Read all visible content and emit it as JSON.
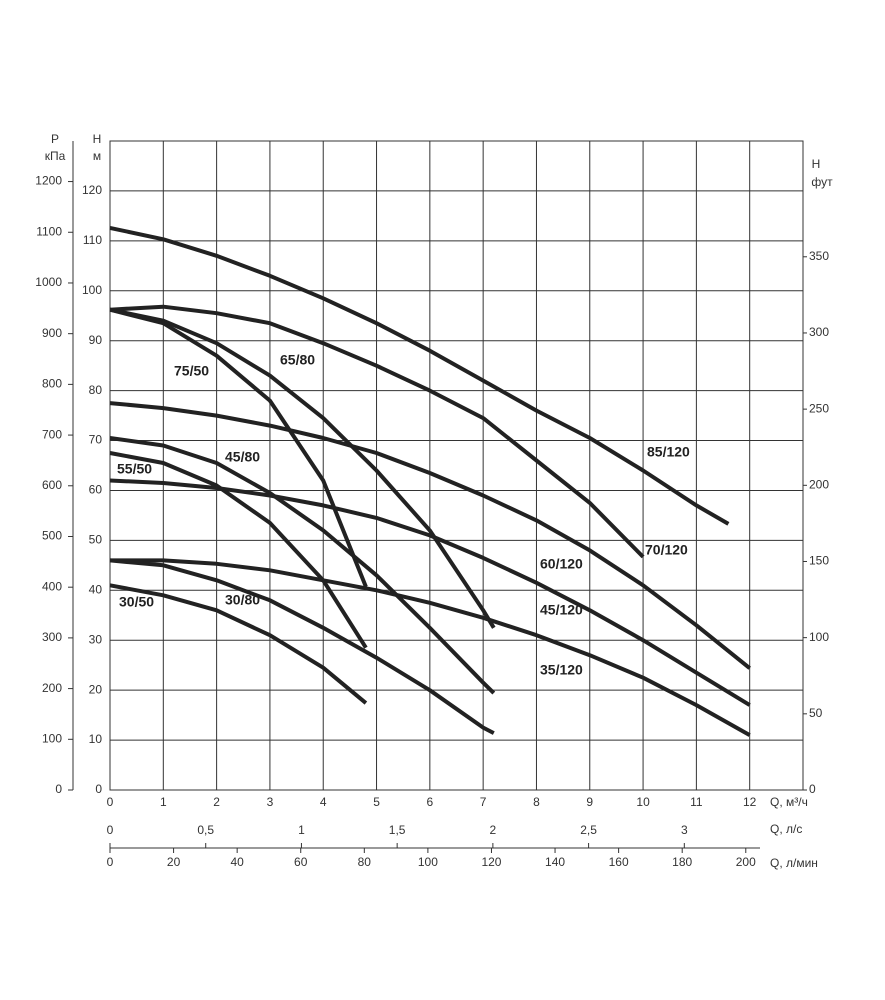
{
  "chart_data": {
    "type": "line",
    "y_label": [
      "H",
      "м"
    ],
    "y2_label": [
      "H",
      "фут"
    ],
    "y3_label": [
      "P",
      "кПа"
    ],
    "x_label": "Q, м³/ч",
    "x2_label": "Q, л/с",
    "x3_label": "Q, л/мин",
    "xlim": [
      0,
      13
    ],
    "xticks": [
      0,
      1,
      2,
      3,
      4,
      5,
      6,
      7,
      8,
      9,
      10,
      11,
      12
    ],
    "ylim": [
      0,
      130
    ],
    "yticks": [
      0,
      10,
      20,
      30,
      40,
      50,
      60,
      70,
      80,
      90,
      100,
      110,
      120
    ],
    "y2lim": [
      0,
      426
    ],
    "y2ticks": [
      0,
      50,
      100,
      150,
      200,
      250,
      300,
      350
    ],
    "y3lim": [
      0,
      1280
    ],
    "y3ticks": [
      0,
      100,
      200,
      300,
      400,
      500,
      600,
      700,
      800,
      900,
      1000,
      1100,
      1200
    ],
    "x2lim": [
      0,
      3.62
    ],
    "x2ticks": [
      0,
      {
        "value": 0.5,
        "label": "0,5"
      },
      1,
      {
        "value": 1.5,
        "label": "1,5"
      },
      2,
      {
        "value": 2.5,
        "label": "2,5"
      },
      3
    ],
    "x3lim": [
      0,
      218
    ],
    "x3ticks": [
      0,
      20,
      40,
      60,
      80,
      100,
      120,
      140,
      160,
      180,
      200
    ],
    "grid": true,
    "series": [
      {
        "name": "85/120",
        "color": "#222222",
        "x": [
          0,
          1,
          2,
          3,
          4,
          5,
          6,
          7,
          8,
          9,
          10,
          11,
          11.6
        ],
        "values": [
          112.6,
          110.3,
          107,
          103,
          98.5,
          93.5,
          88,
          82,
          76,
          70.5,
          64,
          57,
          53.3
        ]
      },
      {
        "name": "70/120",
        "color": "#222222",
        "x": [
          0,
          1,
          2,
          3,
          4,
          5,
          6,
          7,
          8,
          9,
          10
        ],
        "values": [
          96.2,
          96.8,
          95.5,
          93.5,
          89.5,
          85,
          80,
          74.5,
          66,
          57.5,
          46.7
        ]
      },
      {
        "name": "65/80",
        "color": "#222222",
        "x": [
          0,
          1,
          2,
          3,
          4,
          5,
          6,
          7,
          7.2
        ],
        "values": [
          96.2,
          94,
          89.5,
          83,
          74.5,
          64,
          52,
          36,
          32.5
        ]
      },
      {
        "name": "75/50",
        "color": "#222222",
        "x": [
          0,
          1,
          2,
          3,
          4,
          4.8
        ],
        "values": [
          96.2,
          93.5,
          87,
          78,
          62,
          40.7
        ]
      },
      {
        "name": "60/120",
        "color": "#222222",
        "x": [
          0,
          1,
          2,
          3,
          4,
          5,
          6,
          7,
          8,
          9,
          10,
          11,
          12
        ],
        "values": [
          77.5,
          76.5,
          75,
          73,
          70.5,
          67.5,
          63.5,
          59,
          54,
          48,
          41,
          33,
          24.4
        ]
      },
      {
        "name": "45/80",
        "color": "#222222",
        "x": [
          0,
          1,
          2,
          3,
          4,
          5,
          6,
          7,
          7.2
        ],
        "values": [
          70.5,
          69,
          65.5,
          59.5,
          52,
          43,
          32.5,
          21.5,
          19.4
        ]
      },
      {
        "name": "55/50",
        "color": "#222222",
        "x": [
          0,
          1,
          2,
          3,
          4,
          4.8
        ],
        "values": [
          67.5,
          65.5,
          61,
          53.5,
          42,
          28.5
        ]
      },
      {
        "name": "45/120",
        "color": "#222222",
        "x": [
          0,
          1,
          2,
          3,
          4,
          5,
          6,
          7,
          8,
          9,
          10,
          11,
          12
        ],
        "values": [
          62,
          61.5,
          60.5,
          59,
          57,
          54.5,
          51,
          46.5,
          41.5,
          36,
          30,
          23.5,
          17
        ]
      },
      {
        "name": "35/120",
        "color": "#222222",
        "x": [
          0,
          1,
          2,
          3,
          4,
          5,
          6,
          7,
          8,
          9,
          10,
          11,
          12
        ],
        "values": [
          46,
          46,
          45.3,
          44,
          42,
          40,
          37.5,
          34.5,
          31,
          27,
          22.5,
          17,
          11
        ]
      },
      {
        "name": "30/80",
        "color": "#222222",
        "x": [
          0,
          1,
          2,
          3,
          4,
          5,
          6,
          7,
          7.2
        ],
        "values": [
          46,
          45,
          42,
          38,
          32.5,
          26.5,
          20,
          12.5,
          11.4
        ]
      },
      {
        "name": "30/50",
        "color": "#222222",
        "x": [
          0,
          1,
          2,
          3,
          4,
          4.8
        ],
        "values": [
          41,
          39,
          36,
          31,
          24.5,
          17.4
        ]
      }
    ]
  }
}
